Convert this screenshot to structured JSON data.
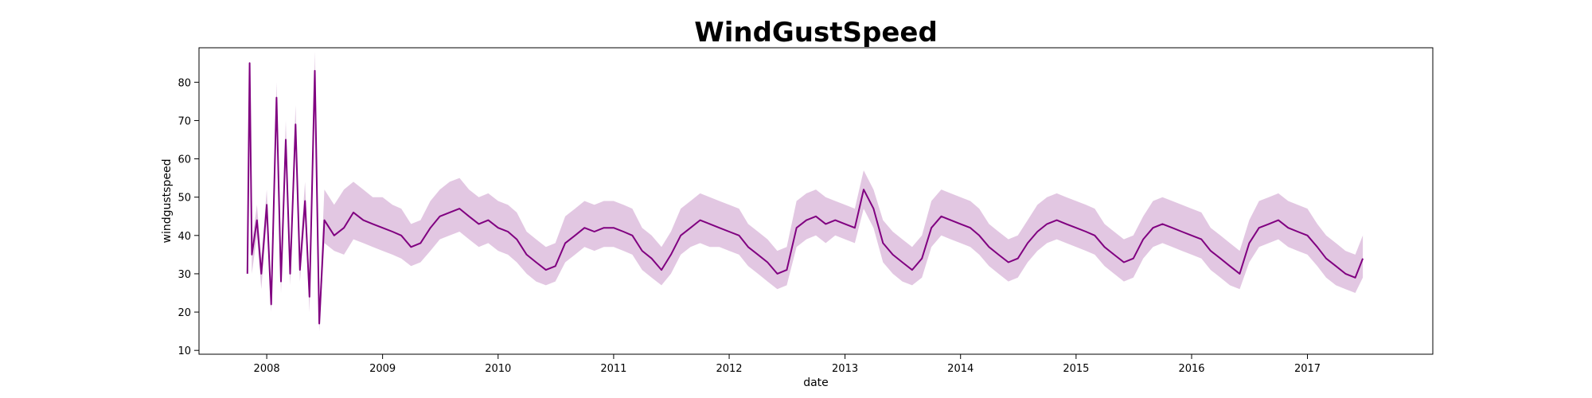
{
  "chart_data": {
    "type": "line",
    "title": "WindGustSpeed",
    "xlabel": "date",
    "ylabel": "windgustspeed",
    "xlim": [
      "2007-06-01",
      "2018-02-01"
    ],
    "ylim": [
      9,
      89
    ],
    "grid": false,
    "legend": "none",
    "x_ticks": [
      "2008",
      "2009",
      "2010",
      "2011",
      "2012",
      "2013",
      "2014",
      "2015",
      "2016",
      "2017"
    ],
    "y_ticks": [
      10,
      20,
      30,
      40,
      50,
      60,
      70,
      80
    ],
    "line_color": "#800080",
    "band_color": "#d8b4d8",
    "series": [
      {
        "x": [
          "2007-11-01",
          "2007-11-08",
          "2007-11-15",
          "2007-12-01",
          "2007-12-15",
          "2008-01-01",
          "2008-01-15",
          "2008-02-01",
          "2008-02-15",
          "2008-03-01",
          "2008-03-15",
          "2008-04-01",
          "2008-04-15",
          "2008-05-01",
          "2008-05-15",
          "2008-06-01",
          "2008-06-15",
          "2008-07-01",
          "2008-08-01",
          "2008-09-01",
          "2008-10-01",
          "2008-11-01",
          "2008-12-01",
          "2009-01-01",
          "2009-02-01",
          "2009-03-01",
          "2009-04-01",
          "2009-05-01",
          "2009-06-01",
          "2009-07-01",
          "2009-08-01",
          "2009-09-01",
          "2009-10-01",
          "2009-11-01",
          "2009-12-01",
          "2010-01-01",
          "2010-02-01",
          "2010-03-01",
          "2010-04-01",
          "2010-05-01",
          "2010-06-01",
          "2010-07-01",
          "2010-08-01",
          "2010-09-01",
          "2010-10-01",
          "2010-11-01",
          "2010-12-01",
          "2011-01-01",
          "2011-02-01",
          "2011-03-01",
          "2011-04-01",
          "2011-05-01",
          "2011-06-01",
          "2011-07-01",
          "2011-08-01",
          "2011-09-01",
          "2011-10-01",
          "2011-11-01",
          "2011-12-01",
          "2012-01-01",
          "2012-02-01",
          "2012-03-01",
          "2012-04-01",
          "2012-05-01",
          "2012-06-01",
          "2012-07-01",
          "2012-08-01",
          "2012-09-01",
          "2012-10-01",
          "2012-11-01",
          "2012-12-01",
          "2013-01-01",
          "2013-02-01",
          "2013-03-01",
          "2013-04-01",
          "2013-05-01",
          "2013-06-01",
          "2013-07-01",
          "2013-08-01",
          "2013-09-01",
          "2013-10-01",
          "2013-11-01",
          "2013-12-01",
          "2014-01-01",
          "2014-02-01",
          "2014-03-01",
          "2014-04-01",
          "2014-05-01",
          "2014-06-01",
          "2014-07-01",
          "2014-08-01",
          "2014-09-01",
          "2014-10-01",
          "2014-11-01",
          "2014-12-01",
          "2015-01-01",
          "2015-02-01",
          "2015-03-01",
          "2015-04-01",
          "2015-05-01",
          "2015-06-01",
          "2015-07-01",
          "2015-08-01",
          "2015-09-01",
          "2015-10-01",
          "2015-11-01",
          "2015-12-01",
          "2016-01-01",
          "2016-02-01",
          "2016-03-01",
          "2016-04-01",
          "2016-05-01",
          "2016-06-01",
          "2016-07-01",
          "2016-08-01",
          "2016-09-01",
          "2016-10-01",
          "2016-11-01",
          "2016-12-01",
          "2017-01-01",
          "2017-02-01",
          "2017-03-01",
          "2017-04-01",
          "2017-05-01",
          "2017-06-01",
          "2017-06-25"
        ],
        "y": [
          30,
          85,
          35,
          44,
          30,
          48,
          22,
          76,
          28,
          65,
          30,
          69,
          31,
          49,
          24,
          83,
          17,
          44,
          40,
          42,
          46,
          44,
          43,
          42,
          41,
          40,
          37,
          38,
          42,
          45,
          46,
          47,
          45,
          43,
          44,
          42,
          41,
          39,
          35,
          33,
          31,
          32,
          38,
          40,
          42,
          41,
          42,
          42,
          41,
          40,
          36,
          34,
          31,
          35,
          40,
          42,
          44,
          43,
          42,
          41,
          40,
          37,
          35,
          33,
          30,
          31,
          42,
          44,
          45,
          43,
          44,
          43,
          42,
          52,
          47,
          38,
          35,
          33,
          31,
          34,
          42,
          45,
          44,
          43,
          42,
          40,
          37,
          35,
          33,
          34,
          38,
          41,
          43,
          44,
          43,
          42,
          41,
          40,
          37,
          35,
          33,
          34,
          39,
          42,
          43,
          42,
          41,
          40,
          39,
          36,
          34,
          32,
          30,
          38,
          42,
          43,
          44,
          42,
          41,
          40,
          37,
          34,
          32,
          30,
          29,
          34
        ],
        "y_low": [
          30,
          80,
          30,
          40,
          26,
          44,
          20,
          70,
          25,
          60,
          27,
          64,
          28,
          45,
          20,
          75,
          15,
          38,
          36,
          35,
          39,
          38,
          37,
          36,
          35,
          34,
          32,
          33,
          36,
          39,
          40,
          41,
          39,
          37,
          38,
          36,
          35,
          33,
          30,
          28,
          27,
          28,
          33,
          35,
          37,
          36,
          37,
          37,
          36,
          35,
          31,
          29,
          27,
          30,
          35,
          37,
          38,
          37,
          37,
          36,
          35,
          32,
          30,
          28,
          26,
          27,
          37,
          39,
          40,
          38,
          40,
          39,
          38,
          47,
          42,
          33,
          30,
          28,
          27,
          29,
          37,
          40,
          39,
          38,
          37,
          35,
          32,
          30,
          28,
          29,
          33,
          36,
          38,
          39,
          38,
          37,
          36,
          35,
          32,
          30,
          28,
          29,
          34,
          37,
          38,
          37,
          36,
          35,
          34,
          31,
          29,
          27,
          26,
          33,
          37,
          38,
          39,
          37,
          36,
          35,
          32,
          29,
          27,
          26,
          25,
          29
        ],
        "y_high": [
          30,
          85,
          38,
          48,
          34,
          52,
          26,
          80,
          32,
          70,
          34,
          74,
          35,
          54,
          28,
          88,
          21,
          52,
          48,
          52,
          54,
          52,
          50,
          50,
          48,
          47,
          43,
          44,
          49,
          52,
          54,
          55,
          52,
          50,
          51,
          49,
          48,
          46,
          41,
          39,
          37,
          38,
          45,
          47,
          49,
          48,
          49,
          49,
          48,
          47,
          42,
          40,
          37,
          41,
          47,
          49,
          51,
          50,
          49,
          48,
          47,
          43,
          41,
          39,
          36,
          37,
          49,
          51,
          52,
          50,
          49,
          48,
          47,
          57,
          52,
          44,
          41,
          39,
          37,
          40,
          49,
          52,
          51,
          50,
          49,
          47,
          43,
          41,
          39,
          40,
          44,
          48,
          50,
          51,
          50,
          49,
          48,
          47,
          43,
          41,
          39,
          40,
          45,
          49,
          50,
          49,
          48,
          47,
          46,
          42,
          40,
          38,
          36,
          44,
          49,
          50,
          51,
          49,
          48,
          47,
          43,
          40,
          38,
          36,
          35,
          40
        ]
      }
    ]
  }
}
